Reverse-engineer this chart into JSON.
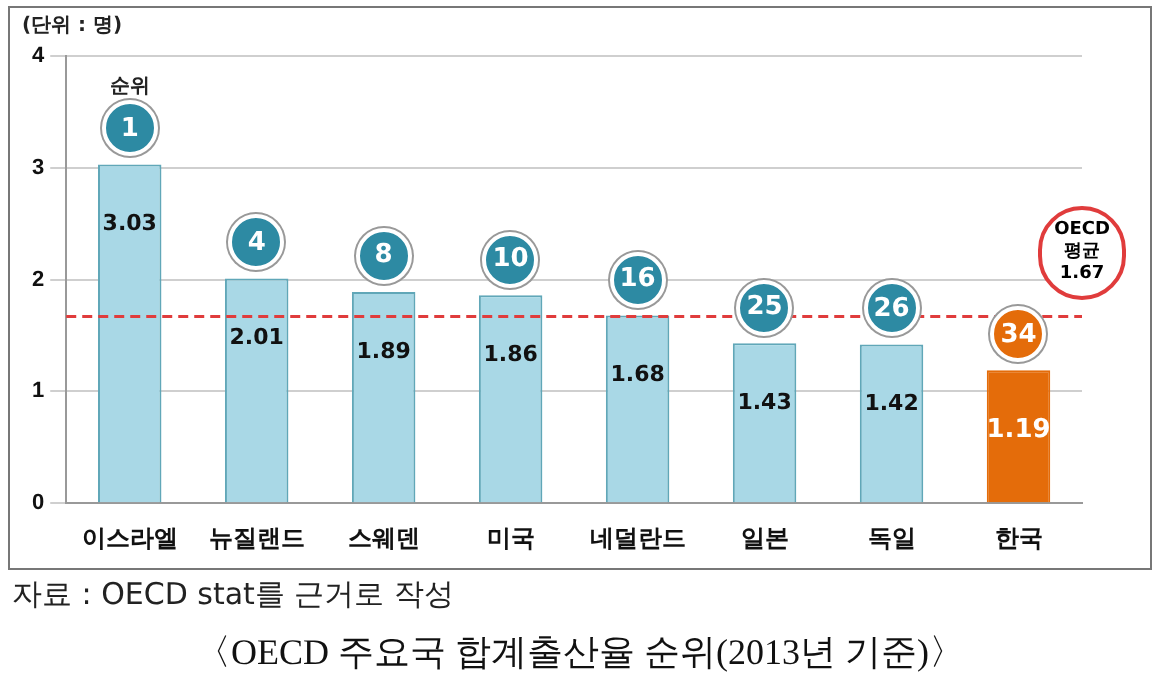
{
  "chart_data": {
    "type": "bar",
    "title": "〈OECD 주요국 합계출산율 순위(2013년 기준)〉",
    "ylabel": "(단위 : 명)",
    "categories": [
      "이스라엘",
      "뉴질랜드",
      "스웨덴",
      "미국",
      "네덜란드",
      "일본",
      "독일",
      "한국"
    ],
    "values": [
      3.03,
      2.01,
      1.89,
      1.86,
      1.68,
      1.43,
      1.42,
      1.19
    ],
    "colors": [
      "#a9d8e6",
      "#a9d8e6",
      "#a9d8e6",
      "#a9d8e6",
      "#a9d8e6",
      "#a9d8e6",
      "#a9d8e6",
      "#e46c0a"
    ],
    "data_labels": true,
    "ylim": [
      0,
      4
    ],
    "yticks": [
      0,
      1,
      2,
      3,
      4
    ],
    "grid": "y",
    "legend": false,
    "ref_lines": [
      {
        "axis": "y",
        "value": 1.67,
        "label": "OECD 평균 1.67",
        "color": "#e03c3c",
        "line_style": "dashed"
      }
    ],
    "annotations": [
      {
        "text": "1",
        "x": "이스라엘",
        "y": 3.03
      },
      "순위",
      {
        "text": "4",
        "x": "뉴질랜드",
        "y": 2.01
      },
      {
        "text": "8",
        "x": "스웨덴",
        "y": 1.89
      },
      {
        "text": "10",
        "x": "미국",
        "y": 1.86
      },
      {
        "text": "16",
        "x": "네덜란드",
        "y": 1.68
      },
      {
        "text": "25",
        "x": "일본",
        "y": 1.43
      },
      {
        "text": "26",
        "x": "독일",
        "y": 1.42
      },
      {
        "text": "34",
        "x": "한국",
        "y": 1.19
      },
      "자료 : OECD stat를 근거로 작성"
    ]
  }
}
